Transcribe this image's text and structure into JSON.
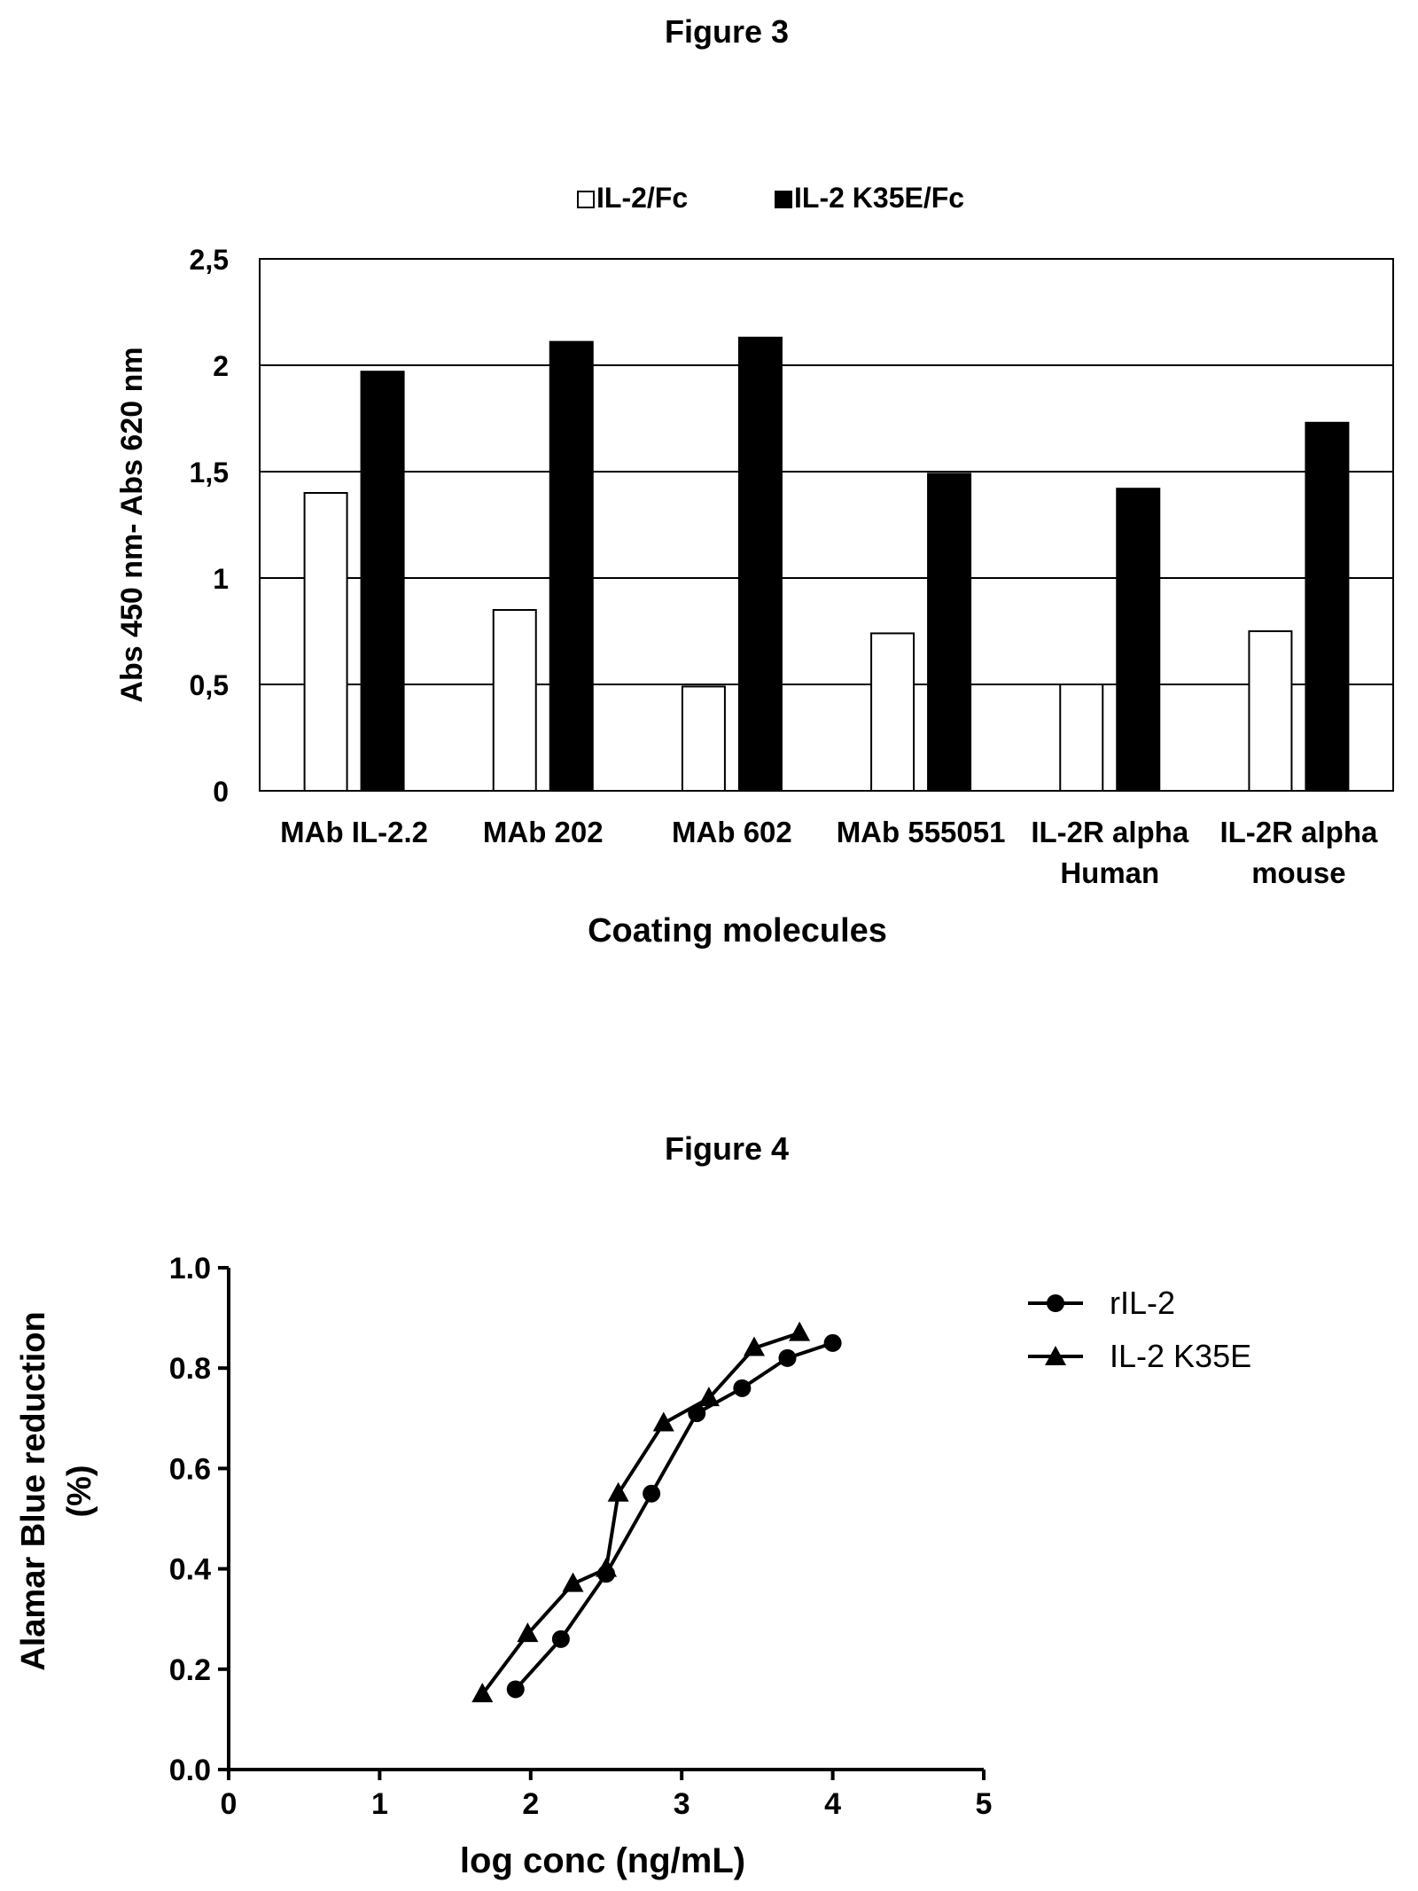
{
  "figures": [
    {
      "title": "Figure 3",
      "chart_data": {
        "type": "bar",
        "categories": [
          [
            "MAb IL-2.2"
          ],
          [
            "MAb 202"
          ],
          [
            "MAb 602"
          ],
          [
            "MAb 555051"
          ],
          [
            "IL-2R alpha",
            "Human"
          ],
          [
            "IL-2R alpha",
            "mouse"
          ]
        ],
        "series": [
          {
            "name": "IL-2/Fc",
            "color": "#ffffff",
            "values": [
              1.4,
              0.85,
              0.49,
              0.74,
              0.5,
              0.75
            ]
          },
          {
            "name": "IL-2 K35E/Fc",
            "color": "#000000",
            "values": [
              1.97,
              2.11,
              2.13,
              1.49,
              1.42,
              1.73
            ]
          }
        ],
        "ylabel": "Abs 450 nm- Abs 620 nm",
        "xlabel": "Coating molecules",
        "ylim": [
          0,
          2.5
        ],
        "yticks": [
          0,
          0.5,
          1,
          1.5,
          2,
          2.5
        ],
        "ytick_labels": [
          "0",
          "0,5",
          "1",
          "1,5",
          "2",
          "2,5"
        ],
        "grid": true,
        "legend": "top"
      }
    },
    {
      "title": "Figure 4",
      "chart_data": {
        "type": "line",
        "series": [
          {
            "name": "rIL-2",
            "marker": "circle",
            "x": [
              1.9,
              2.2,
              2.5,
              2.8,
              3.1,
              3.4,
              3.7,
              4.0
            ],
            "y": [
              0.16,
              0.26,
              0.39,
              0.55,
              0.71,
              0.76,
              0.82,
              0.85
            ]
          },
          {
            "name": "IL-2 K35E",
            "marker": "triangle",
            "x": [
              1.68,
              1.98,
              2.28,
              2.5,
              2.58,
              2.88,
              3.18,
              3.48,
              3.78
            ],
            "y": [
              0.15,
              0.27,
              0.37,
              0.4,
              0.55,
              0.69,
              0.74,
              0.84,
              0.87
            ]
          }
        ],
        "xlabel": "log conc (ng/mL)",
        "ylabel": [
          "Alamar Blue reduction",
          "(%)"
        ],
        "xlim": [
          0,
          5
        ],
        "ylim": [
          0,
          1
        ],
        "xticks": [
          0,
          1,
          2,
          3,
          4,
          5
        ],
        "xtick_labels": [
          "0",
          "1",
          "2",
          "3",
          "4",
          "5"
        ],
        "yticks": [
          0,
          0.2,
          0.4,
          0.6,
          0.8,
          1.0
        ],
        "ytick_labels": [
          "0.0",
          "0.2",
          "0.4",
          "0.6",
          "0.8",
          "1.0"
        ],
        "grid": false,
        "legend": "top-right"
      }
    }
  ]
}
